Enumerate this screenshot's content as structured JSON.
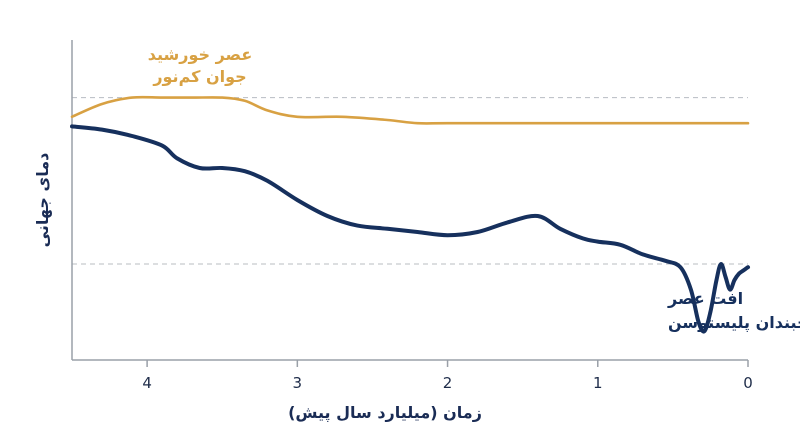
{
  "chart_data": {
    "type": "line",
    "title": "",
    "xlabel": "زمان (میلیارد سال پیش)",
    "ylabel": "دمای جهانی",
    "xlim": [
      4.5,
      0
    ],
    "x_reversed": true,
    "ylim": [
      0,
      1
    ],
    "y_ticks_visible": false,
    "x_ticks": [
      4,
      3,
      2,
      1,
      0
    ],
    "x_tick_labels": [
      "4",
      "3",
      "2",
      "1",
      "0"
    ],
    "reference_lines": [
      0.82,
      0.3
    ],
    "grid": false,
    "legend": "none",
    "series": [
      {
        "name": "عصر خورشید جوان کم‌نور",
        "label_lines": [
          "عصر خورشید",
          "جوان کم‌نور"
        ],
        "color": "#d8a143",
        "x": [
          4.5,
          4.3,
          4.1,
          3.9,
          3.7,
          3.5,
          3.35,
          3.2,
          3.0,
          2.7,
          2.4,
          2.2,
          2.0,
          1.5,
          1.0,
          0.5,
          0.0
        ],
        "y": [
          0.76,
          0.8,
          0.82,
          0.82,
          0.82,
          0.82,
          0.81,
          0.78,
          0.76,
          0.76,
          0.75,
          0.74,
          0.74,
          0.74,
          0.74,
          0.74,
          0.74
        ]
      },
      {
        "name": "افت عصر یخبندان پلیستوسن",
        "label_lines": [
          "افت عصر",
          "یخبندان پلیستوسن"
        ],
        "color": "#16305d",
        "x": [
          4.5,
          4.3,
          4.1,
          3.9,
          3.8,
          3.65,
          3.5,
          3.35,
          3.2,
          3.0,
          2.8,
          2.6,
          2.4,
          2.2,
          2.0,
          1.8,
          1.6,
          1.4,
          1.25,
          1.1,
          1.0,
          0.85,
          0.7,
          0.55,
          0.45,
          0.38,
          0.33,
          0.29,
          0.25,
          0.21,
          0.18,
          0.15,
          0.12,
          0.09,
          0.06,
          0.03,
          0.0
        ],
        "y": [
          0.73,
          0.72,
          0.7,
          0.67,
          0.63,
          0.6,
          0.6,
          0.59,
          0.56,
          0.5,
          0.45,
          0.42,
          0.41,
          0.4,
          0.39,
          0.4,
          0.43,
          0.45,
          0.41,
          0.38,
          0.37,
          0.36,
          0.33,
          0.31,
          0.29,
          0.22,
          0.12,
          0.09,
          0.15,
          0.25,
          0.3,
          0.26,
          0.22,
          0.25,
          0.27,
          0.28,
          0.29
        ]
      }
    ]
  }
}
